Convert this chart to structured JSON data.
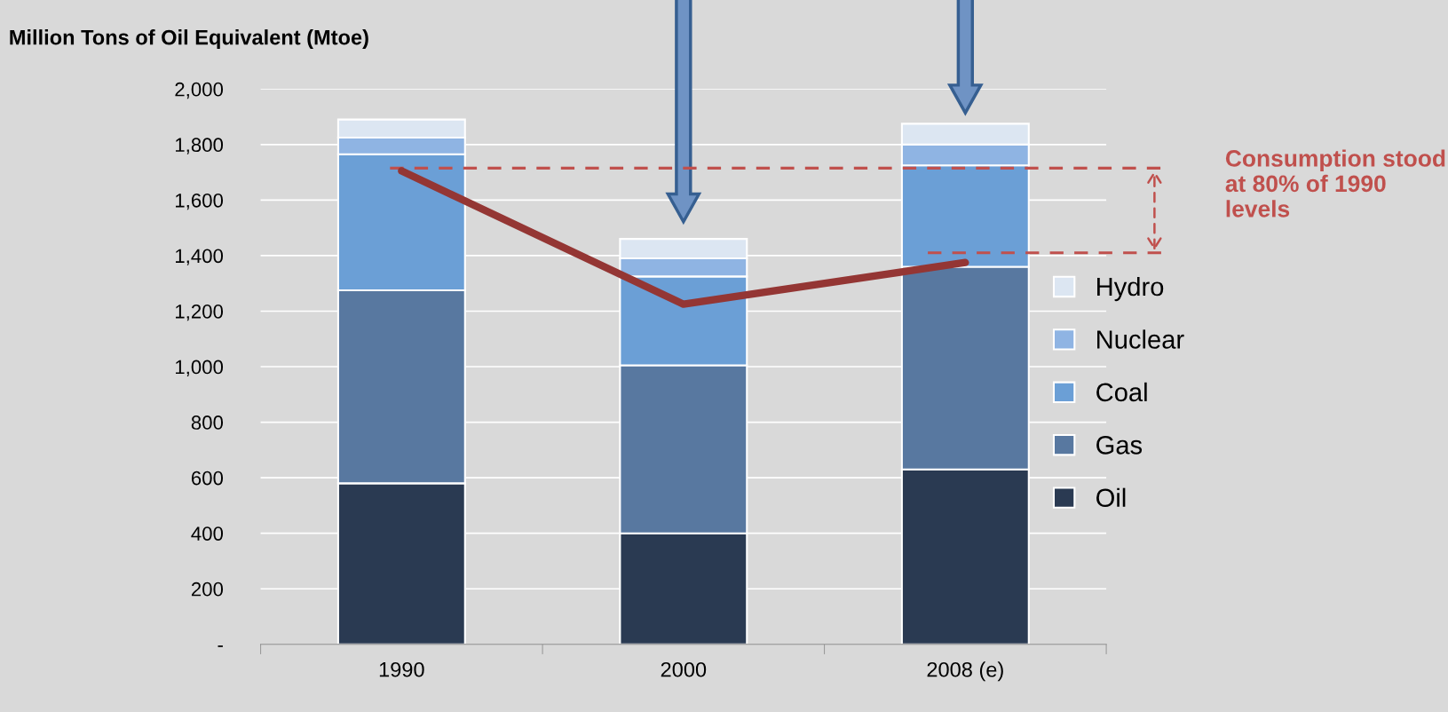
{
  "chart_data": {
    "type": "bar",
    "stacked": true,
    "ylabel": "Million Tons of Oil Equivalent (Mtoe)",
    "categories": [
      "1990",
      "2000",
      "2008 (e)"
    ],
    "series": [
      {
        "name": "Oil",
        "color": "#2a3a52",
        "values": [
          580,
          400,
          630
        ]
      },
      {
        "name": "Gas",
        "color": "#5878a0",
        "values": [
          695,
          605,
          730
        ]
      },
      {
        "name": "Coal",
        "color": "#6b9fd6",
        "values": [
          490,
          320,
          365
        ]
      },
      {
        "name": "Nuclear",
        "color": "#8fb4e3",
        "values": [
          60,
          65,
          75
        ]
      },
      {
        "name": "Hydro",
        "color": "#dce6f2",
        "values": [
          65,
          70,
          75
        ]
      },
      {
        "type": "line",
        "color": "#943634",
        "values": [
          1705,
          1225,
          1375
        ]
      }
    ],
    "ylim": [
      0,
      2000
    ],
    "yticks": [
      {
        "value": 0,
        "label": "-"
      },
      {
        "value": 200,
        "label": "200"
      },
      {
        "value": 400,
        "label": "400"
      },
      {
        "value": 600,
        "label": "600"
      },
      {
        "value": 800,
        "label": "800"
      },
      {
        "value": 1000,
        "label": "1,000"
      },
      {
        "value": 1200,
        "label": "1,200"
      },
      {
        "value": 1400,
        "label": "1,400"
      },
      {
        "value": 1600,
        "label": "1,600"
      },
      {
        "value": 1800,
        "label": "1,800"
      },
      {
        "value": 2000,
        "label": "2,000"
      }
    ],
    "ref_lines": [
      {
        "axis": "y",
        "value": 1715,
        "color": "#c0504d",
        "line_style": "dashed"
      },
      {
        "axis": "y",
        "value": 1410,
        "color": "#c0504d",
        "line_style": "dashed"
      }
    ],
    "annotations": [
      "Consumption stood at 80% of 1990 levels"
    ],
    "grid": "y",
    "legend": "right"
  }
}
